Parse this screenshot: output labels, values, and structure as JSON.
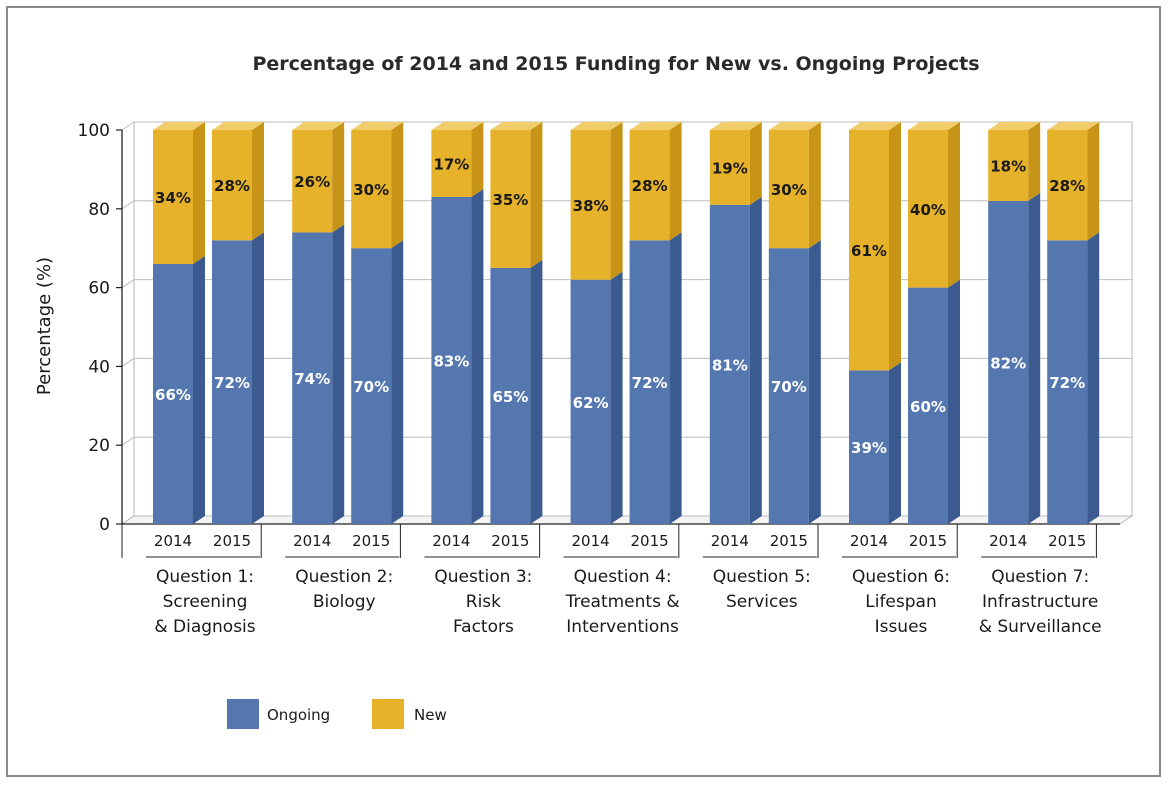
{
  "chart_data": {
    "type": "bar",
    "stacked": true,
    "title": "Percentage of 2014 and 2015 Funding for New vs. Ongoing Projects",
    "ylabel": "Percentage (%)",
    "xlabel": "",
    "ylim": [
      0,
      100
    ],
    "yticks": [
      0,
      20,
      40,
      60,
      80,
      100
    ],
    "grid": true,
    "legend_position": "bottom-left",
    "colors": {
      "Ongoing": "#5577b0",
      "Ongoing_side": "#3a5a90",
      "New": "#e6b22a",
      "New_side": "#c89418",
      "New_top": "#f0cd6a"
    },
    "groups": [
      {
        "label": [
          "Question 1:",
          "Screening",
          "& Diagnosis"
        ],
        "bars": [
          {
            "year": "2014",
            "ongoing": 66,
            "new": 34,
            "ongoing_label": "66%",
            "new_label": "34%"
          },
          {
            "year": "2015",
            "ongoing": 72,
            "new": 28,
            "ongoing_label": "72%",
            "new_label": "28%"
          }
        ]
      },
      {
        "label": [
          "Question 2:",
          "Biology"
        ],
        "bars": [
          {
            "year": "2014",
            "ongoing": 74,
            "new": 26,
            "ongoing_label": "74%",
            "new_label": "26%"
          },
          {
            "year": "2015",
            "ongoing": 70,
            "new": 30,
            "ongoing_label": "70%",
            "new_label": "30%"
          }
        ]
      },
      {
        "label": [
          "Question 3:",
          "Risk",
          "Factors"
        ],
        "bars": [
          {
            "year": "2014",
            "ongoing": 83,
            "new": 17,
            "ongoing_label": "83%",
            "new_label": "17%"
          },
          {
            "year": "2015",
            "ongoing": 65,
            "new": 35,
            "ongoing_label": "65%",
            "new_label": "35%"
          }
        ]
      },
      {
        "label": [
          "Question 4:",
          "Treatments &",
          "Interventions"
        ],
        "bars": [
          {
            "year": "2014",
            "ongoing": 62,
            "new": 38,
            "ongoing_label": "62%",
            "new_label": "38%"
          },
          {
            "year": "2015",
            "ongoing": 72,
            "new": 28,
            "ongoing_label": "72%",
            "new_label": "28%"
          }
        ]
      },
      {
        "label": [
          "Question 5:",
          "Services"
        ],
        "bars": [
          {
            "year": "2014",
            "ongoing": 81,
            "new": 19,
            "ongoing_label": "81%",
            "new_label": "19%"
          },
          {
            "year": "2015",
            "ongoing": 70,
            "new": 30,
            "ongoing_label": "70%",
            "new_label": "30%"
          }
        ]
      },
      {
        "label": [
          "Question 6:",
          "Lifespan",
          "Issues"
        ],
        "bars": [
          {
            "year": "2014",
            "ongoing": 39,
            "new": 61,
            "ongoing_label": "39%",
            "new_label": "61%"
          },
          {
            "year": "2015",
            "ongoing": 60,
            "new": 40,
            "ongoing_label": "60%",
            "new_label": "40%"
          }
        ]
      },
      {
        "label": [
          "Question 7:",
          "Infrastructure",
          "& Surveillance"
        ],
        "bars": [
          {
            "year": "2014",
            "ongoing": 82,
            "new": 18,
            "ongoing_label": "82%",
            "new_label": "18%"
          },
          {
            "year": "2015",
            "ongoing": 72,
            "new": 28,
            "ongoing_label": "72%",
            "new_label": "28%"
          }
        ]
      }
    ],
    "series": [
      {
        "name": "Ongoing",
        "values_2014": [
          66,
          74,
          83,
          62,
          81,
          39,
          82
        ],
        "values_2015": [
          72,
          70,
          65,
          72,
          70,
          60,
          72
        ]
      },
      {
        "name": "New",
        "values_2014": [
          34,
          26,
          17,
          38,
          19,
          61,
          18
        ],
        "values_2015": [
          28,
          30,
          35,
          28,
          30,
          40,
          28
        ]
      }
    ]
  },
  "legend": {
    "items": [
      {
        "name": "Ongoing",
        "label": "Ongoing"
      },
      {
        "name": "New",
        "label": "New"
      }
    ]
  }
}
